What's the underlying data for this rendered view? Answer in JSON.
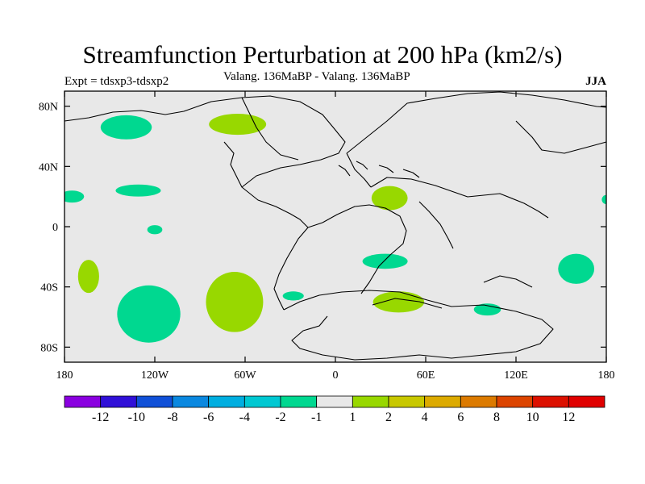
{
  "chart_data": {
    "type": "heatmap",
    "title": "Streamfunction Perturbation at 200 hPa (km2/s)",
    "subtitle": "Valang. 136MaBP - Valang. 136MaBP",
    "left_label": "Expt = tdsxp3-tdsxp2",
    "right_label": "JJA",
    "xlim": [
      -180,
      180
    ],
    "ylim": [
      -90,
      90
    ],
    "x_ticks": [
      {
        "value": -180,
        "label": "180"
      },
      {
        "value": -120,
        "label": "120W"
      },
      {
        "value": -60,
        "label": "60W"
      },
      {
        "value": 0,
        "label": "0"
      },
      {
        "value": 60,
        "label": "60E"
      },
      {
        "value": 120,
        "label": "120E"
      },
      {
        "value": 180,
        "label": "180"
      }
    ],
    "y_ticks": [
      {
        "value": 80,
        "label": "80N"
      },
      {
        "value": 40,
        "label": "40N"
      },
      {
        "value": 0,
        "label": "0"
      },
      {
        "value": -40,
        "label": "40S"
      },
      {
        "value": -80,
        "label": "80S"
      }
    ],
    "colorbar": {
      "levels": [
        "-12",
        "-10",
        "-8",
        "-6",
        "-4",
        "-2",
        "-1",
        "1",
        "2",
        "4",
        "6",
        "8",
        "10",
        "12"
      ],
      "colors": [
        "#8a00e0",
        "#3010d8",
        "#1050d8",
        "#0a88e0",
        "#00aee0",
        "#00c8d2",
        "#00d890",
        "#e8e8e8",
        "#98d800",
        "#c8c800",
        "#dcaa00",
        "#dc7a00",
        "#dc4400",
        "#dc1000",
        "#e00000"
      ]
    },
    "background_color": "#e8e8e8",
    "anomaly_regions": [
      {
        "name": "north-pacific-negative",
        "sign": "negative",
        "level": "-1",
        "center": [
          -139,
          66
        ],
        "radius": [
          17,
          8
        ]
      },
      {
        "name": "north-atlantic-positive",
        "sign": "positive",
        "level": "1",
        "center": [
          -65,
          68
        ],
        "radius": [
          19,
          7
        ]
      },
      {
        "name": "tropical-pacific-negative",
        "sign": "negative",
        "level": "-1",
        "center": [
          -131,
          24
        ],
        "radius": [
          15,
          4
        ]
      },
      {
        "name": "west-edge-negative",
        "sign": "negative",
        "level": "-1",
        "center": [
          -175,
          20
        ],
        "radius": [
          8,
          4
        ]
      },
      {
        "name": "east-edge-negative",
        "sign": "negative",
        "level": "-1",
        "center": [
          180,
          18
        ],
        "radius": [
          3,
          3
        ]
      },
      {
        "name": "equatorial-pacific-negative",
        "sign": "negative",
        "level": "-1",
        "center": [
          -120,
          -2
        ],
        "radius": [
          5,
          3
        ]
      },
      {
        "name": "africa-positive",
        "sign": "positive",
        "level": "1",
        "center": [
          36,
          19
        ],
        "radius": [
          12,
          8
        ]
      },
      {
        "name": "south-pacific-west-positive",
        "sign": "positive",
        "level": "1",
        "center": [
          -164,
          -33
        ],
        "radius": [
          7,
          11
        ]
      },
      {
        "name": "south-pacific-negative",
        "sign": "negative",
        "level": "-1",
        "center": [
          -124,
          -58
        ],
        "radius": [
          21,
          19
        ]
      },
      {
        "name": "south-america-positive",
        "sign": "positive",
        "level": "1",
        "center": [
          -67,
          -50
        ],
        "radius": [
          19,
          20
        ]
      },
      {
        "name": "south-atlantic-negative",
        "sign": "negative",
        "level": "-1",
        "center": [
          -28,
          -46
        ],
        "radius": [
          7,
          3
        ]
      },
      {
        "name": "south-indian-negative",
        "sign": "negative",
        "level": "-1",
        "center": [
          33,
          -23
        ],
        "radius": [
          15,
          5
        ]
      },
      {
        "name": "southern-africa-positive",
        "sign": "positive",
        "level": "1",
        "center": [
          42,
          -50
        ],
        "radius": [
          17,
          7
        ]
      },
      {
        "name": "south-indian-east-negative",
        "sign": "negative",
        "level": "-1",
        "center": [
          101,
          -55
        ],
        "radius": [
          9,
          4
        ]
      },
      {
        "name": "tasman-negative",
        "sign": "negative",
        "level": "-1",
        "center": [
          160,
          -28
        ],
        "radius": [
          12,
          10
        ]
      }
    ]
  }
}
